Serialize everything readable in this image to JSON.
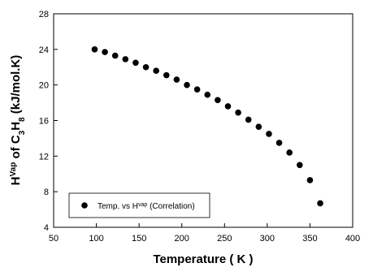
{
  "chart_data": {
    "type": "scatter",
    "x_label": "Temperature ( K )",
    "y_label_parts": [
      "H",
      "Vap",
      " of C",
      "3",
      "H",
      "8",
      " (kJ/mol.K)"
    ],
    "xlim": [
      50,
      400
    ],
    "xticks": [
      50,
      100,
      150,
      200,
      250,
      300,
      350,
      400
    ],
    "ylim": [
      4,
      28
    ],
    "yticks": [
      4,
      8,
      12,
      16,
      20,
      24,
      28
    ],
    "legend_position": "lower left",
    "series": [
      {
        "name_parts": [
          "Temp. vs H",
          "vap",
          " (Correlation)"
        ],
        "color": "#000000",
        "x": [
          98,
          110,
          122,
          134,
          146,
          158,
          170,
          182,
          194,
          206,
          218,
          230,
          242,
          254,
          266,
          278,
          290,
          302,
          314,
          326,
          338,
          350,
          362
        ],
        "values": [
          24.0,
          23.7,
          23.3,
          22.9,
          22.5,
          22.0,
          21.6,
          21.1,
          20.6,
          20.0,
          19.5,
          18.9,
          18.3,
          17.6,
          16.9,
          16.1,
          15.3,
          14.5,
          13.5,
          12.4,
          11.0,
          9.3,
          6.7
        ]
      }
    ]
  }
}
